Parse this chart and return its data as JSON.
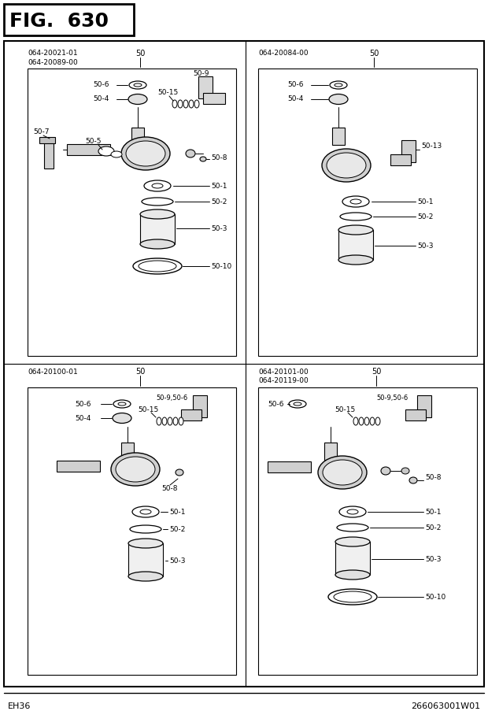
{
  "title": "FIG.  630",
  "bg_color": "#ffffff",
  "fig_width": 6.2,
  "fig_height": 9.22,
  "footer_left": "EH36",
  "footer_right": "266063001W01",
  "top_left_parts": [
    "064-20021-01",
    "064-20089-00"
  ],
  "top_right_parts": [
    "064-20084-00"
  ],
  "bottom_left_parts": [
    "064-20100-01"
  ],
  "bottom_right_parts": [
    "064-20101-00",
    "064-20119-00"
  ]
}
